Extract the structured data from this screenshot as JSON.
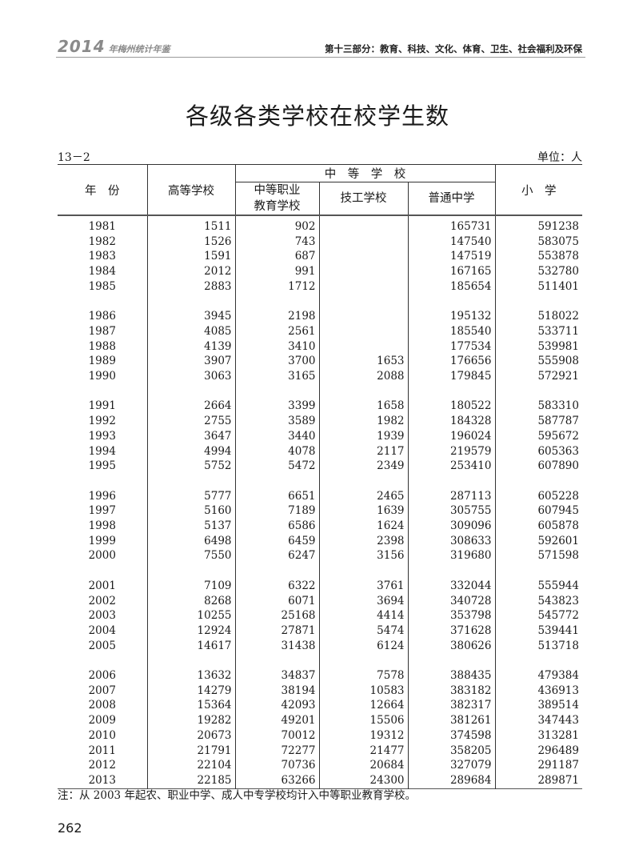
{
  "running_header": {
    "book": "2014",
    "book_sub": "年梅州统计年鉴",
    "section": "第十三部分：教育、科技、文化、体育、卫生、社会福利及环保"
  },
  "title": "各级各类学校在校学生数",
  "table_number": "13－2",
  "unit": "单位：人",
  "columns": {
    "year": "年　份",
    "higher": "高等学校",
    "secondary_group": "中　等　学　校",
    "vocational_l1": "中等职业",
    "vocational_l2": "教育学校",
    "technical": "技工学校",
    "general_middle": "普通中学",
    "primary": "小　学"
  },
  "groups": [
    [
      [
        "1981",
        "1511",
        "902",
        "",
        "165731",
        "591238"
      ],
      [
        "1982",
        "1526",
        "743",
        "",
        "147540",
        "583075"
      ],
      [
        "1983",
        "1591",
        "687",
        "",
        "147519",
        "553878"
      ],
      [
        "1984",
        "2012",
        "991",
        "",
        "167165",
        "532780"
      ],
      [
        "1985",
        "2883",
        "1712",
        "",
        "185654",
        "511401"
      ]
    ],
    [
      [
        "1986",
        "3945",
        "2198",
        "",
        "195132",
        "518022"
      ],
      [
        "1987",
        "4085",
        "2561",
        "",
        "185540",
        "533711"
      ],
      [
        "1988",
        "4139",
        "3410",
        "",
        "177534",
        "539981"
      ],
      [
        "1989",
        "3907",
        "3700",
        "1653",
        "176656",
        "555908"
      ],
      [
        "1990",
        "3063",
        "3165",
        "2088",
        "179845",
        "572921"
      ]
    ],
    [
      [
        "1991",
        "2664",
        "3399",
        "1658",
        "180522",
        "583310"
      ],
      [
        "1992",
        "2755",
        "3589",
        "1982",
        "184328",
        "587787"
      ],
      [
        "1993",
        "3647",
        "3440",
        "1939",
        "196024",
        "595672"
      ],
      [
        "1994",
        "4994",
        "4078",
        "2117",
        "219579",
        "605363"
      ],
      [
        "1995",
        "5752",
        "5472",
        "2349",
        "253410",
        "607890"
      ]
    ],
    [
      [
        "1996",
        "5777",
        "6651",
        "2465",
        "287113",
        "605228"
      ],
      [
        "1997",
        "5160",
        "7189",
        "1639",
        "305755",
        "607945"
      ],
      [
        "1998",
        "5137",
        "6586",
        "1624",
        "309096",
        "605878"
      ],
      [
        "1999",
        "6498",
        "6459",
        "2398",
        "308633",
        "592601"
      ],
      [
        "2000",
        "7550",
        "6247",
        "3156",
        "319680",
        "571598"
      ]
    ],
    [
      [
        "2001",
        "7109",
        "6322",
        "3761",
        "332044",
        "555944"
      ],
      [
        "2002",
        "8268",
        "6071",
        "3694",
        "340728",
        "543823"
      ],
      [
        "2003",
        "10255",
        "25168",
        "4414",
        "353798",
        "545772"
      ],
      [
        "2004",
        "12924",
        "27871",
        "5474",
        "371628",
        "539441"
      ],
      [
        "2005",
        "14617",
        "31438",
        "6124",
        "380626",
        "513718"
      ]
    ],
    [
      [
        "2006",
        "13632",
        "34837",
        "7578",
        "388435",
        "479384"
      ],
      [
        "2007",
        "14279",
        "38194",
        "10583",
        "383182",
        "436913"
      ],
      [
        "2008",
        "15364",
        "42093",
        "12664",
        "382317",
        "389514"
      ],
      [
        "2009",
        "19282",
        "49201",
        "15506",
        "381261",
        "347443"
      ],
      [
        "2010",
        "20673",
        "70012",
        "19312",
        "374598",
        "313281"
      ],
      [
        "2011",
        "21791",
        "72277",
        "21477",
        "358205",
        "296489"
      ],
      [
        "2012",
        "22104",
        "70736",
        "20684",
        "327079",
        "291187"
      ],
      [
        "2013",
        "22185",
        "63266",
        "24300",
        "289684",
        "289871"
      ]
    ]
  ],
  "note": "注：从 2003 年起农、职业中学、成人中专学校均计入中等职业教育学校。",
  "page_number": "262"
}
